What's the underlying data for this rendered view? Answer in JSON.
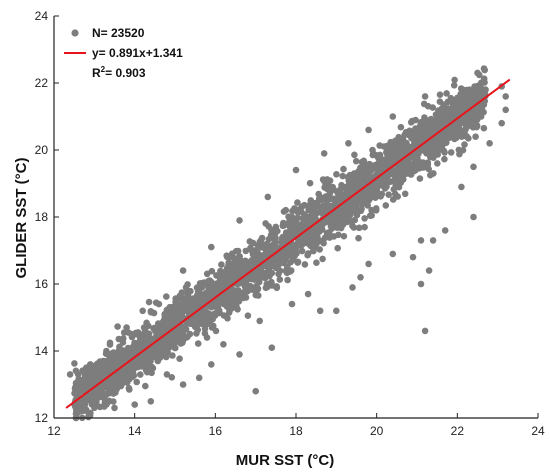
{
  "chart_data": {
    "type": "scatter",
    "xlabel": "MUR SST (°C)",
    "ylabel": "GLIDER SST (°C)",
    "xlim": [
      12,
      24
    ],
    "ylim": [
      12,
      24
    ],
    "xticks": [
      "12",
      "14",
      "16",
      "18",
      "20",
      "22",
      "24"
    ],
    "yticks": [
      "12",
      "14",
      "16",
      "18",
      "20",
      "22",
      "24"
    ],
    "grid": false,
    "legend_position": "top-left",
    "colors": {
      "points": "#7d7d7d",
      "fit_line": "#e8141b",
      "axis": "#222222"
    },
    "legend": {
      "n_label": "N= 23520",
      "fit_label": "y= 0.891x+1.341",
      "r2_prefix": "R",
      "r2_sup": "2",
      "r2_value": "= 0.903"
    },
    "fit": {
      "slope": 0.891,
      "intercept": 1.341,
      "x_range": [
        12.3,
        23.3
      ]
    },
    "scatter": {
      "n": 23520,
      "cloud_x_range": [
        12.2,
        23.3
      ],
      "outliers": [
        [
          22.5,
          22.3
        ],
        [
          22.7,
          21.8
        ],
        [
          23.2,
          21.2
        ],
        [
          23.1,
          20.8
        ],
        [
          22.8,
          20.2
        ],
        [
          22.4,
          19.5
        ],
        [
          22.1,
          18.9
        ],
        [
          22.4,
          18.0
        ],
        [
          21.7,
          17.6
        ],
        [
          21.4,
          17.3
        ],
        [
          21.1,
          17.3
        ],
        [
          20.9,
          16.8
        ],
        [
          21.3,
          16.4
        ],
        [
          21.1,
          16.0
        ],
        [
          21.2,
          14.6
        ],
        [
          20.4,
          16.9
        ],
        [
          19.8,
          16.6
        ],
        [
          19.6,
          16.2
        ],
        [
          19.4,
          15.9
        ],
        [
          19.0,
          15.2
        ],
        [
          18.6,
          15.2
        ],
        [
          18.3,
          15.7
        ],
        [
          17.9,
          15.4
        ],
        [
          17.4,
          14.1
        ],
        [
          17.1,
          14.9
        ],
        [
          17.0,
          12.8
        ],
        [
          16.6,
          13.9
        ],
        [
          16.2,
          14.2
        ],
        [
          15.9,
          13.6
        ],
        [
          15.6,
          13.2
        ],
        [
          15.2,
          13.0
        ],
        [
          14.8,
          13.3
        ],
        [
          14.4,
          12.5
        ],
        [
          14.0,
          12.4
        ],
        [
          13.5,
          12.3
        ],
        [
          12.4,
          13.3
        ],
        [
          12.6,
          13.3
        ],
        [
          12.9,
          13.6
        ],
        [
          13.3,
          14.0
        ],
        [
          13.8,
          14.7
        ],
        [
          14.2,
          15.2
        ],
        [
          14.6,
          15.4
        ],
        [
          15.2,
          16.4
        ],
        [
          15.9,
          17.1
        ],
        [
          16.6,
          17.9
        ],
        [
          17.3,
          18.6
        ],
        [
          18.0,
          19.4
        ],
        [
          18.7,
          19.9
        ],
        [
          19.3,
          20.2
        ],
        [
          19.8,
          20.6
        ],
        [
          20.4,
          21.0
        ],
        [
          21.2,
          21.6
        ],
        [
          23.1,
          21.9
        ],
        [
          23.2,
          21.6
        ],
        [
          22.2,
          20.6
        ]
      ]
    }
  }
}
